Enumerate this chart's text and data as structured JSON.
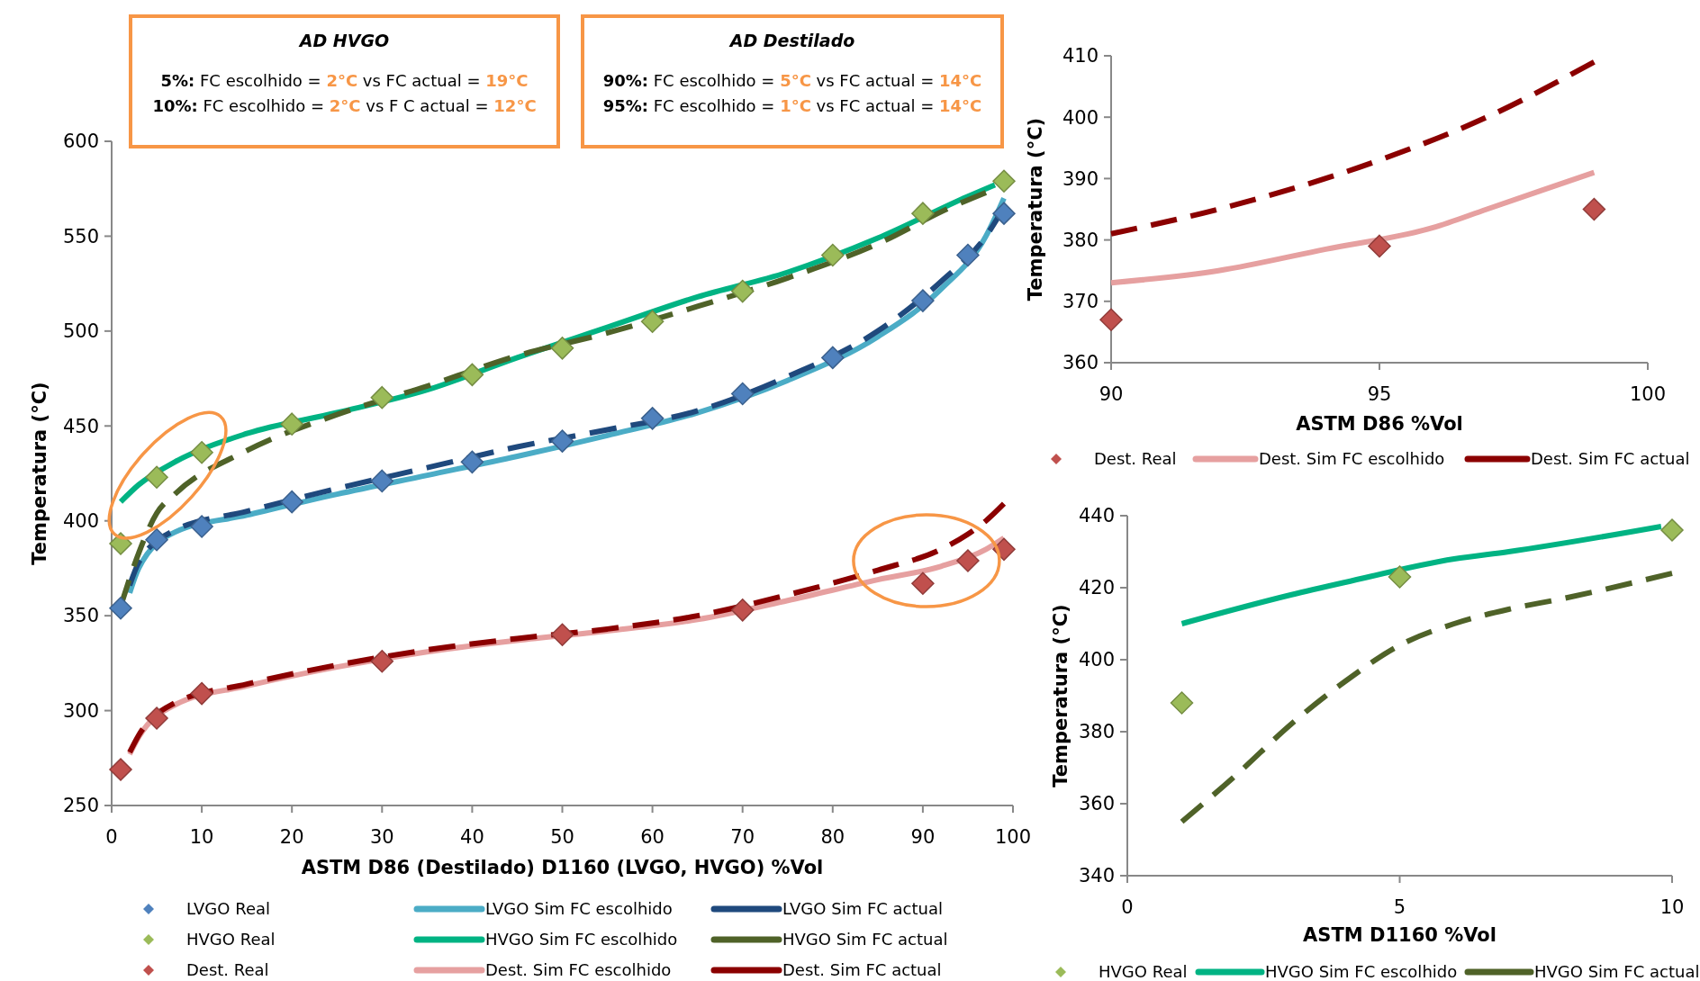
{
  "chart_data": [
    {
      "type": "line",
      "xlabel": "ASTM D86 (Destilado) D1160 (LVGO, HVGO) %Vol",
      "ylabel": "Temperatura (°C)",
      "xlim": [
        0,
        100
      ],
      "xticks": [
        0,
        10,
        20,
        30,
        40,
        50,
        60,
        70,
        80,
        90,
        100
      ],
      "ylim": [
        250,
        600
      ],
      "yticks": [
        250,
        300,
        350,
        400,
        450,
        500,
        550,
        600
      ],
      "grid": false,
      "legend": "bottom",
      "annotations": [
        "AD HVGO",
        "5%: FC escolhido = 2°C vs FC actual = 19°C",
        "10%: FC escolhido = 2°C vs F C actual = 12°C",
        "AD Destilado",
        "90%: FC escolhido = 5°C vs FC actual = 14°C",
        "95%: FC escolhido = 1°C vs FC actual = 14°C"
      ],
      "series": [
        {
          "name": "LVGO Real",
          "type": "scatter",
          "marker": "diamond",
          "color": "#4f81bd",
          "x": [
            1,
            5,
            10,
            20,
            30,
            40,
            50,
            60,
            70,
            80,
            90,
            95,
            99
          ],
          "values": [
            354,
            390,
            397,
            410,
            421,
            431,
            442,
            454,
            467,
            486,
            516,
            540,
            562
          ]
        },
        {
          "name": "LVGO Sim FC escolhido",
          "type": "line",
          "line_style": "solid",
          "color": "#4bacc6",
          "x": [
            2,
            3,
            7,
            15,
            25,
            35,
            45,
            55,
            65,
            75,
            85,
            92,
            97,
            99
          ],
          "values": [
            362,
            375,
            394,
            403,
            414,
            424,
            434,
            445,
            457,
            474,
            497,
            522,
            550,
            570
          ]
        },
        {
          "name": "LVGO Sim FC actual",
          "type": "line",
          "line_style": "dashed",
          "color": "#1f497d",
          "x": [
            2,
            3,
            7,
            15,
            25,
            35,
            45,
            55,
            65,
            75,
            85,
            92,
            97,
            99
          ],
          "values": [
            366,
            378,
            395,
            405,
            417,
            428,
            439,
            448,
            458,
            476,
            500,
            526,
            550,
            565
          ]
        },
        {
          "name": "HVGO Real",
          "type": "scatter",
          "marker": "diamond",
          "color": "#9bbb59",
          "x": [
            1,
            5,
            10,
            20,
            30,
            40,
            50,
            60,
            70,
            80,
            90,
            99
          ],
          "values": [
            388,
            423,
            436,
            451,
            465,
            477,
            491,
            505,
            521,
            540,
            562,
            579
          ]
        },
        {
          "name": "HVGO Sim FC escolhido",
          "type": "line",
          "line_style": "solid",
          "color": "#00b383",
          "x": [
            1,
            3,
            7,
            15,
            25,
            35,
            45,
            55,
            65,
            75,
            85,
            95,
            98
          ],
          "values": [
            410,
            419,
            431,
            446,
            457,
            469,
            486,
            502,
            518,
            531,
            549,
            571,
            577
          ]
        },
        {
          "name": "HVGO Sim FC actual",
          "type": "line",
          "line_style": "dashed",
          "color": "#4f6228",
          "x": [
            1,
            3,
            5,
            7,
            15,
            25,
            35,
            45,
            55,
            65,
            75,
            85,
            93,
            97
          ],
          "values": [
            355,
            383,
            404,
            414,
            437,
            456,
            471,
            487,
            499,
            513,
            528,
            546,
            565,
            573
          ]
        },
        {
          "name": "Dest. Real",
          "type": "scatter",
          "marker": "diamond",
          "color": "#c0504d",
          "x": [
            1,
            5,
            10,
            30,
            50,
            70,
            90,
            95,
            99
          ],
          "values": [
            269,
            296,
            309,
            326,
            340,
            353,
            367,
            379,
            385
          ]
        },
        {
          "name": "Dest. Sim FC escolhido",
          "type": "line",
          "line_style": "solid",
          "color": "#e6a0a0",
          "x": [
            2,
            3,
            7,
            15,
            25,
            35,
            45,
            55,
            65,
            75,
            85,
            92,
            97,
            99
          ],
          "values": [
            277,
            286,
            303,
            313,
            323,
            331,
            337,
            342,
            348,
            358,
            369,
            376,
            385,
            391
          ]
        },
        {
          "name": "Dest. Sim FC actual",
          "type": "line",
          "line_style": "dashed",
          "color": "#8b0000",
          "x": [
            2,
            3,
            7,
            15,
            25,
            35,
            45,
            55,
            65,
            75,
            85,
            92,
            95,
            97,
            99
          ],
          "values": [
            278,
            287,
            304,
            314,
            324,
            332,
            338,
            343,
            350,
            361,
            374,
            385,
            393,
            400,
            409
          ]
        }
      ]
    },
    {
      "type": "line",
      "xlabel": "ASTM D86 %Vol",
      "ylabel": "Temperatura (°C)",
      "xlim": [
        90,
        100
      ],
      "xticks": [
        90,
        95,
        100
      ],
      "ylim": [
        360,
        410
      ],
      "yticks": [
        360,
        370,
        380,
        390,
        400,
        410
      ],
      "grid": false,
      "legend": "bottom",
      "series": [
        {
          "name": "Dest. Real",
          "type": "scatter",
          "marker": "diamond",
          "color": "#c0504d",
          "x": [
            90,
            95,
            99
          ],
          "values": [
            367,
            379,
            385
          ]
        },
        {
          "name": "Dest. Sim FC escolhido",
          "type": "line",
          "line_style": "solid",
          "color": "#e6a0a0",
          "x": [
            90,
            92,
            94,
            96,
            97,
            99
          ],
          "values": [
            373,
            375,
            378.5,
            382,
            385,
            391
          ]
        },
        {
          "name": "Dest. Sim FC actual",
          "type": "line",
          "line_style": "dashed",
          "color": "#8b0000",
          "x": [
            90,
            92,
            95,
            97,
            99
          ],
          "values": [
            381,
            385,
            393,
            400,
            409
          ]
        }
      ]
    },
    {
      "type": "line",
      "xlabel": "ASTM D1160 %Vol",
      "ylabel": "Temperatura (°C)",
      "xlim": [
        0,
        10
      ],
      "xticks": [
        0,
        5,
        10
      ],
      "ylim": [
        340,
        440
      ],
      "yticks": [
        340,
        360,
        380,
        400,
        420,
        440
      ],
      "grid": false,
      "legend": "bottom",
      "series": [
        {
          "name": "HVGO Real",
          "type": "scatter",
          "marker": "diamond",
          "color": "#9bbb59",
          "x": [
            1,
            5,
            10
          ],
          "values": [
            388,
            423,
            436
          ]
        },
        {
          "name": "HVGO Sim FC escolhido",
          "type": "line",
          "line_style": "solid",
          "color": "#00b383",
          "x": [
            1,
            3,
            4,
            6,
            7,
            9.8
          ],
          "values": [
            410,
            418,
            421.5,
            428,
            430,
            437
          ]
        },
        {
          "name": "HVGO Sim FC actual",
          "type": "line",
          "line_style": "dashed",
          "color": "#4f6228",
          "x": [
            1,
            2,
            3,
            4,
            5,
            6,
            7,
            8,
            10
          ],
          "values": [
            355,
            368,
            382,
            394,
            404,
            410,
            414,
            417,
            424
          ]
        }
      ]
    }
  ]
}
